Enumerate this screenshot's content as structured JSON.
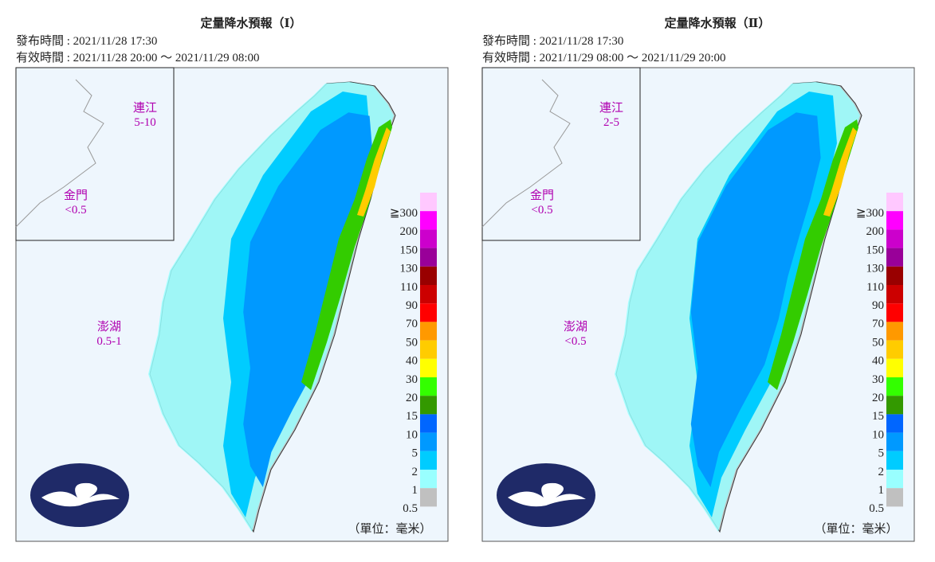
{
  "panels": [
    {
      "title": "定量降水預報（Ⅰ）",
      "issued": "發布時間 : 2021/11/28 17:30",
      "valid": "有效時間 : 2021/11/28 20:00 ～ 2021/11/29 08:00",
      "islands": [
        {
          "name": "連江",
          "value": "5-10"
        },
        {
          "name": "金門",
          "value": "<0.5"
        },
        {
          "name": "澎湖",
          "value": "0.5-1"
        }
      ]
    },
    {
      "title": "定量降水預報（Ⅱ）",
      "issued": "發布時間 : 2021/11/28 17:30",
      "valid": "有效時間 : 2021/11/29 08:00 ～ 2021/11/29 20:00",
      "islands": [
        {
          "name": "連江",
          "value": "2-5"
        },
        {
          "name": "金門",
          "value": "<0.5"
        },
        {
          "name": "澎湖",
          "value": "<0.5"
        }
      ]
    }
  ],
  "legend": {
    "unit": "（單位：毫米）",
    "items": [
      {
        "label": "≧300",
        "color": "#ffc8ff"
      },
      {
        "label": "200",
        "color": "#ff00ff"
      },
      {
        "label": "150",
        "color": "#cc00cc"
      },
      {
        "label": "130",
        "color": "#990099"
      },
      {
        "label": "110",
        "color": "#990000"
      },
      {
        "label": "90",
        "color": "#cc0000"
      },
      {
        "label": "70",
        "color": "#ff0000"
      },
      {
        "label": "50",
        "color": "#ff9900"
      },
      {
        "label": "40",
        "color": "#ffcc00"
      },
      {
        "label": "30",
        "color": "#ffff00"
      },
      {
        "label": "20",
        "color": "#33ff00"
      },
      {
        "label": "15",
        "color": "#339900"
      },
      {
        "label": "10",
        "color": "#0066ff"
      },
      {
        "label": "5",
        "color": "#0099ff"
      },
      {
        "label": "2",
        "color": "#00ccff"
      },
      {
        "label": "1",
        "color": "#99ffff"
      },
      {
        "label": "0.5",
        "color": "#c0c0c0"
      }
    ]
  }
}
